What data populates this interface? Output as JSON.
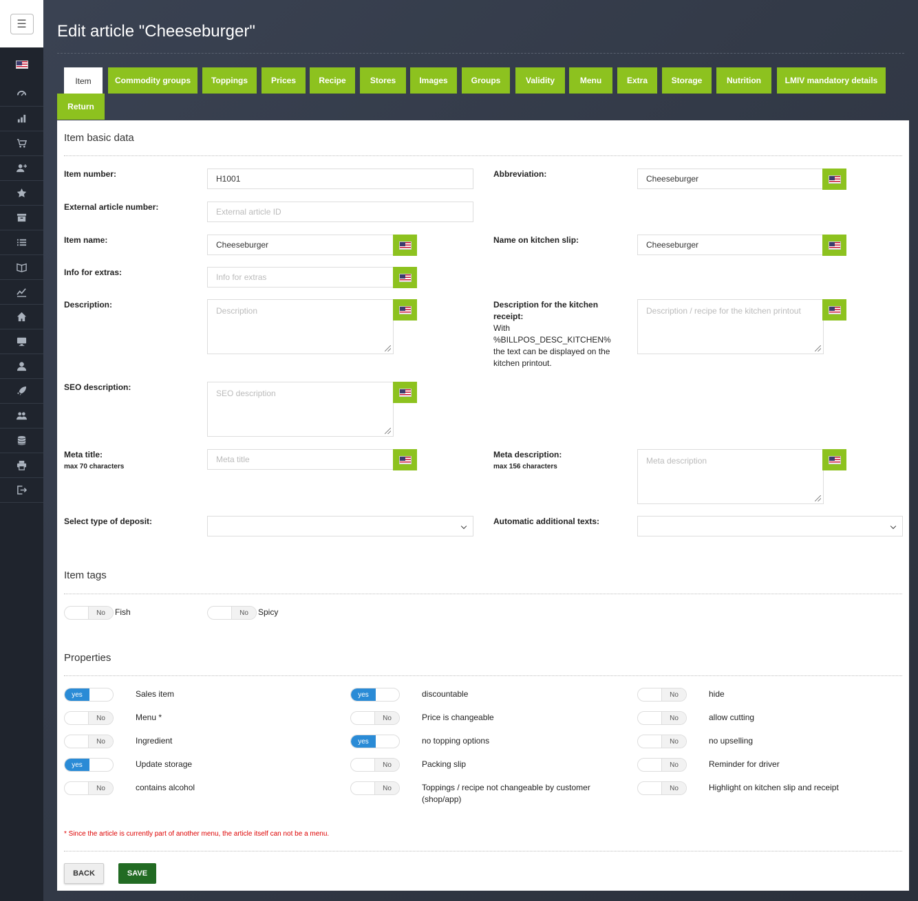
{
  "page": {
    "title": "Edit article \"Cheeseburger\""
  },
  "sidebar": {
    "menu_icon": "hamburger-icon",
    "language_flag": "us-flag-icon",
    "items": [
      "dashboard-icon",
      "chart-bar-icon",
      "cart-icon",
      "user-plus-icon",
      "star-icon",
      "archive-icon",
      "list-icon",
      "book-icon",
      "line-chart-icon",
      "home-icon",
      "monitor-icon",
      "user-icon",
      "rocket-icon",
      "users-icon",
      "database-icon",
      "printer-icon",
      "logout-icon"
    ]
  },
  "tabs": [
    "Item",
    "Commodity groups",
    "Toppings",
    "Prices",
    "Recipe",
    "Stores",
    "Images",
    "Groups",
    "Validity",
    "Menu",
    "Extra",
    "Storage",
    "Nutrition",
    "LMIV mandatory details",
    "Return"
  ],
  "basic": {
    "section_title": "Item basic data",
    "item_number": {
      "label": "Item number:",
      "value": "H1001"
    },
    "external_number": {
      "label": "External article number:",
      "placeholder": "External article ID"
    },
    "item_name": {
      "label": "Item name:",
      "value": "Cheeseburger"
    },
    "info_extras": {
      "label": "Info for extras:",
      "placeholder": "Info for extras"
    },
    "description": {
      "label": "Description:",
      "placeholder": "Description"
    },
    "seo_description": {
      "label": "SEO description:",
      "placeholder": "SEO description"
    },
    "meta_title": {
      "label": "Meta title:",
      "hint": "max 70 characters",
      "placeholder": "Meta title"
    },
    "deposit": {
      "label": "Select type of deposit:",
      "value": ""
    },
    "abbreviation": {
      "label": "Abbreviation:",
      "value": "Cheeseburger"
    },
    "kitchen_name": {
      "label": "Name on kitchen slip:",
      "value": "Cheeseburger"
    },
    "kitchen_desc": {
      "label": "Description for the kitchen receipt:",
      "note": "With %BILLPOS_DESC_KITCHEN% the text can be displayed on the kitchen printout.",
      "placeholder": "Description / recipe for the kitchen printout"
    },
    "meta_description": {
      "label": "Meta description:",
      "hint": "max 156 characters",
      "placeholder": "Meta description"
    },
    "auto_texts": {
      "label": "Automatic additional texts:",
      "value": ""
    }
  },
  "tags": {
    "section_title": "Item tags",
    "items": [
      {
        "label": "Fish",
        "state": "No"
      },
      {
        "label": "Spicy",
        "state": "No"
      }
    ]
  },
  "properties": {
    "section_title": "Properties",
    "col1": [
      {
        "label": "Sales item",
        "state": "yes"
      },
      {
        "label": "Menu *",
        "state": "No"
      },
      {
        "label": "Ingredient",
        "state": "No"
      },
      {
        "label": "Update storage",
        "state": "yes"
      },
      {
        "label": "contains alcohol",
        "state": "No"
      }
    ],
    "col2": [
      {
        "label": "discountable",
        "state": "yes"
      },
      {
        "label": "Price is changeable",
        "state": "No"
      },
      {
        "label": "no topping options",
        "state": "yes"
      },
      {
        "label": "Packing slip",
        "state": "No"
      },
      {
        "label": "Toppings / recipe not changeable by customer (shop/app)",
        "state": "No"
      }
    ],
    "col3": [
      {
        "label": "hide",
        "state": "No"
      },
      {
        "label": "allow cutting",
        "state": "No"
      },
      {
        "label": "no upselling",
        "state": "No"
      },
      {
        "label": "Reminder for driver",
        "state": "No"
      },
      {
        "label": "Highlight on kitchen slip and receipt",
        "state": "No"
      }
    ]
  },
  "warning": "* Since the article is currently part of another menu, the article itself can not be a menu.",
  "buttons": {
    "back": "BACK",
    "save": "SAVE"
  }
}
